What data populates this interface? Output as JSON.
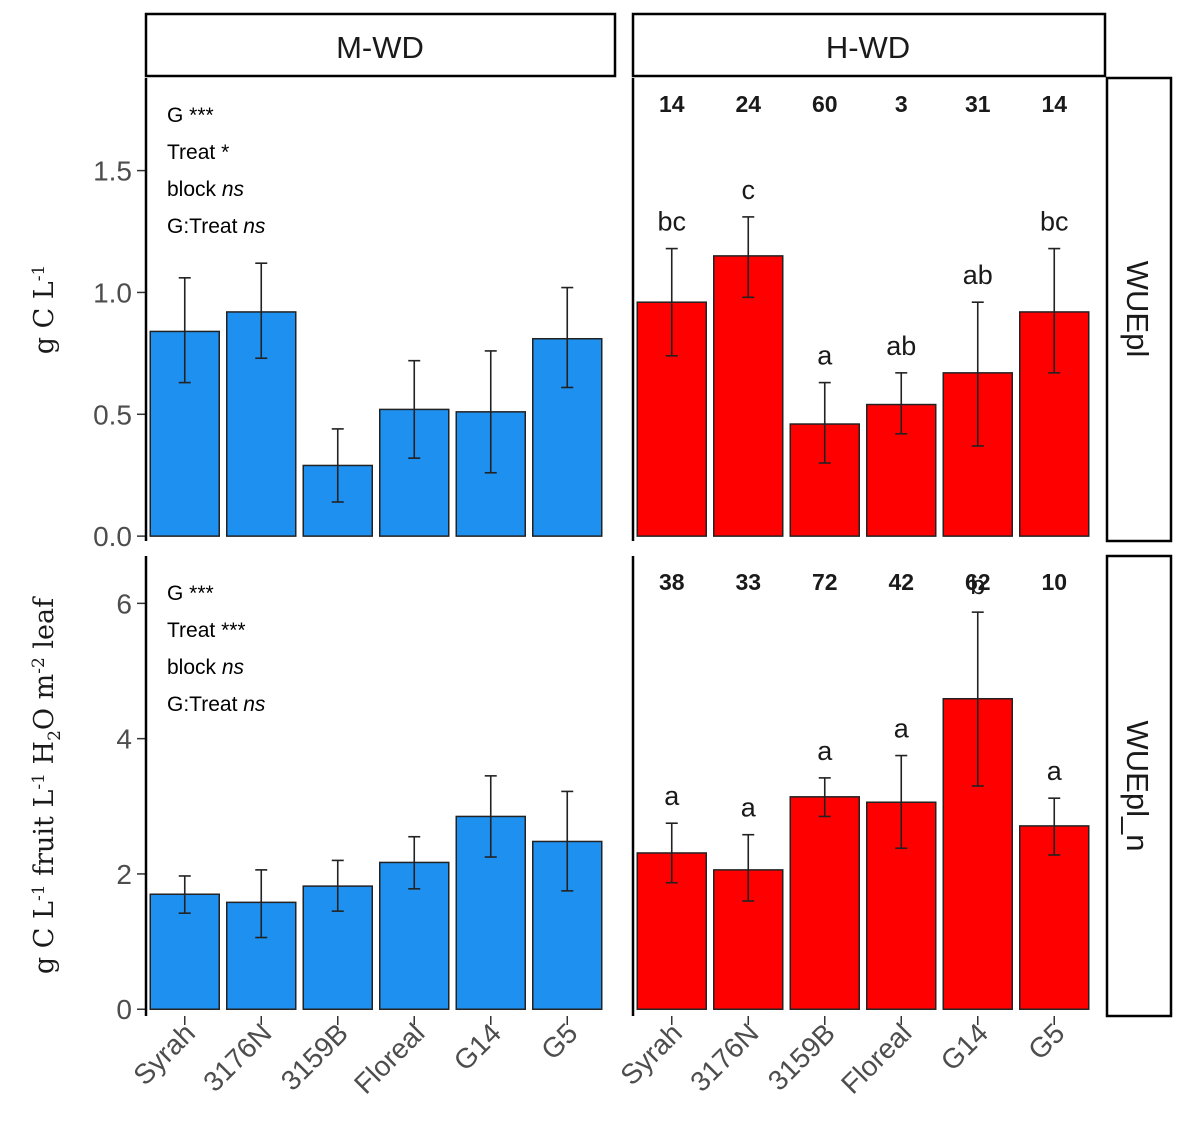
{
  "chart_data": {
    "type": "bar",
    "categories": [
      "Syrah",
      "3176N",
      "3159B",
      "Floreal",
      "G14",
      "G5"
    ],
    "columns": [
      "M-WD",
      "H-WD"
    ],
    "rows": [
      "WUEpl",
      "WUEpl_n"
    ],
    "colors": {
      "M-WD": "#1e90f0",
      "H-WD": "#ff0000"
    },
    "panels": [
      {
        "row": "WUEpl",
        "ylabel_parts": [
          "g C L",
          "-1"
        ],
        "ylim": [
          -0.02,
          1.88
        ],
        "yticks": [
          0.0,
          0.5,
          1.0,
          1.5
        ],
        "ytick_labels": [
          "0.0",
          "0.5",
          "1.0",
          "1.5"
        ],
        "stats": [
          {
            "term": "G",
            "sig": "***"
          },
          {
            "term": "Treat",
            "sig": "*"
          },
          {
            "term": "block",
            "sig": "ns"
          },
          {
            "term": "G:Treat",
            "sig": "ns"
          }
        ],
        "series": [
          {
            "name": "M-WD",
            "values": [
              0.84,
              0.92,
              0.29,
              0.52,
              0.51,
              0.81
            ],
            "err_low": [
              0.63,
              0.73,
              0.14,
              0.32,
              0.26,
              0.61
            ],
            "err_high": [
              1.06,
              1.12,
              0.44,
              0.72,
              0.76,
              1.02
            ]
          },
          {
            "name": "H-WD",
            "values": [
              0.96,
              1.15,
              0.46,
              0.54,
              0.67,
              0.92
            ],
            "err_low": [
              0.74,
              0.98,
              0.3,
              0.42,
              0.37,
              0.67
            ],
            "err_high": [
              1.18,
              1.31,
              0.63,
              0.67,
              0.96,
              1.18
            ],
            "counts": [
              "14",
              "24",
              "60",
              "3",
              "31",
              "14"
            ],
            "letters": [
              "bc",
              "c",
              "a",
              "ab",
              "ab",
              "bc"
            ]
          }
        ]
      },
      {
        "row": "WUEpl_n",
        "ylabel_parts": [
          "g C L",
          "-1",
          " fruit L",
          "-1",
          " H",
          "2",
          "O m",
          "-2",
          " leaf"
        ],
        "ylim": [
          -0.1,
          6.7
        ],
        "yticks": [
          0,
          2,
          4,
          6
        ],
        "ytick_labels": [
          "0",
          "2",
          "4",
          "6"
        ],
        "stats": [
          {
            "term": "G",
            "sig": "***"
          },
          {
            "term": "Treat",
            "sig": "***"
          },
          {
            "term": "block",
            "sig": "ns"
          },
          {
            "term": "G:Treat",
            "sig": "ns"
          }
        ],
        "series": [
          {
            "name": "M-WD",
            "values": [
              1.7,
              1.58,
              1.82,
              2.17,
              2.85,
              2.48
            ],
            "err_low": [
              1.42,
              1.06,
              1.45,
              1.78,
              2.25,
              1.75
            ],
            "err_high": [
              1.97,
              2.06,
              2.2,
              2.55,
              3.45,
              3.22
            ]
          },
          {
            "name": "H-WD",
            "values": [
              2.31,
              2.06,
              3.14,
              3.06,
              4.59,
              2.71
            ],
            "err_low": [
              1.87,
              1.6,
              2.85,
              2.38,
              3.3,
              2.28
            ],
            "err_high": [
              2.75,
              2.58,
              3.42,
              3.75,
              5.87,
              3.12
            ],
            "counts": [
              "38",
              "33",
              "72",
              "42",
              "62",
              "10"
            ],
            "letters": [
              "a",
              "a",
              "a",
              "a",
              "b",
              "a"
            ]
          }
        ]
      }
    ]
  }
}
